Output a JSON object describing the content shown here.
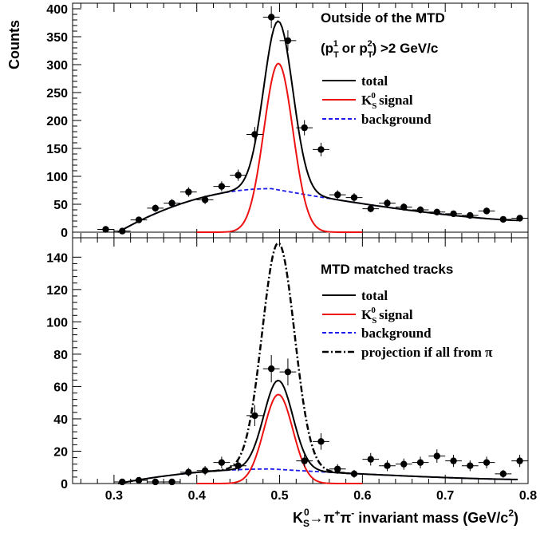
{
  "colors": {
    "total": "#000000",
    "signal": "#ee1111",
    "background": "#1a1aee",
    "projection": "#000000",
    "points": "#000000"
  },
  "chart_data": [
    {
      "type": "scatter",
      "panel": "top",
      "title": "Outside of the MTD",
      "subtitle": "(p_T^1 or p_T^2) >2 GeV/c",
      "xlabel": "K_S^0 → π⁺π⁻ invariant mass (GeV/c²)",
      "ylabel": "Counts",
      "xlim": [
        0.25,
        0.8
      ],
      "ylim": [
        -10,
        410
      ],
      "xticks": [
        0.3,
        0.4,
        0.5,
        0.6,
        0.7,
        0.8
      ],
      "yticks": [
        0,
        50,
        100,
        150,
        200,
        250,
        300,
        350,
        400
      ],
      "legend": {
        "placement": "top-right",
        "entries": [
          "total",
          "K_S^0 signal",
          "background"
        ]
      },
      "points": {
        "x": [
          0.29,
          0.31,
          0.33,
          0.35,
          0.37,
          0.39,
          0.41,
          0.43,
          0.45,
          0.47,
          0.49,
          0.51,
          0.53,
          0.55,
          0.57,
          0.59,
          0.61,
          0.63,
          0.65,
          0.67,
          0.69,
          0.71,
          0.73,
          0.75,
          0.77,
          0.79
        ],
        "y": [
          5,
          2,
          22,
          43,
          52,
          72,
          58,
          82,
          102,
          175,
          385,
          343,
          187,
          148,
          67,
          62,
          42,
          52,
          45,
          40,
          36,
          33,
          30,
          38,
          23,
          25
        ]
      },
      "series": [
        {
          "name": "total",
          "style": "solid"
        },
        {
          "name": "K_S^0 signal",
          "style": "solid"
        },
        {
          "name": "background",
          "style": "dashed"
        }
      ],
      "model": {
        "signal": {
          "mean": 0.4985,
          "sigma": 0.0175,
          "amplitude": 302,
          "range": [
            0.4,
            0.6
          ]
        },
        "background": {
          "x0": 0.305,
          "xpeak": 0.49,
          "peak": 78,
          "x1": 0.79,
          "y1": 21,
          "range": [
            0.305,
            0.8
          ]
        }
      }
    },
    {
      "type": "scatter",
      "panel": "bottom",
      "title": "MTD matched tracks",
      "xlabel": "K_S^0 → π⁺π⁻ invariant mass (GeV/c²)",
      "xlim": [
        0.25,
        0.8
      ],
      "ylim": [
        0,
        152
      ],
      "xticks": [
        0.3,
        0.4,
        0.5,
        0.6,
        0.7,
        0.8
      ],
      "yticks": [
        0,
        20,
        40,
        60,
        80,
        100,
        120,
        140
      ],
      "legend": {
        "placement": "top-right",
        "entries": [
          "total",
          "K_S^0 signal",
          "background",
          "projection if all from π"
        ]
      },
      "points": {
        "x": [
          0.31,
          0.33,
          0.35,
          0.37,
          0.39,
          0.41,
          0.43,
          0.45,
          0.47,
          0.49,
          0.51,
          0.53,
          0.55,
          0.57,
          0.59,
          0.61,
          0.63,
          0.65,
          0.67,
          0.69,
          0.71,
          0.73,
          0.75,
          0.77,
          0.79
        ],
        "y": [
          1,
          2,
          1,
          1,
          7,
          8,
          13,
          11,
          42,
          71,
          69,
          14,
          26,
          9,
          6,
          15,
          11,
          12,
          13,
          17,
          14,
          11,
          13,
          6,
          14
        ]
      },
      "series": [
        {
          "name": "total",
          "style": "solid"
        },
        {
          "name": "K_S^0 signal",
          "style": "solid"
        },
        {
          "name": "background",
          "style": "dashed"
        },
        {
          "name": "projection if all from π",
          "style": "dash-dot"
        }
      ],
      "model": {
        "signal": {
          "mean": 0.4985,
          "sigma": 0.0175,
          "amplitude": 55,
          "range": [
            0.4,
            0.6
          ]
        },
        "background": {
          "x0": 0.305,
          "xpeak": 0.49,
          "peak": 9,
          "x1": 0.79,
          "y1": 2.5,
          "range": [
            0.305,
            0.8
          ]
        },
        "projection": {
          "mean": 0.4985,
          "sigma": 0.0195,
          "amplitude": 140,
          "range": [
            0.42,
            0.58
          ]
        }
      }
    }
  ],
  "labels": {
    "ylabel": "Counts",
    "top_title": "Outside of the MTD",
    "top_subtitle_open": "(p",
    "top_subtitle_or": " or p",
    "top_subtitle_close": ") >2 GeV/c",
    "bottom_title": "MTD matched tracks",
    "legend_total": "total",
    "legend_signal_K": "K",
    "legend_signal_rest": " signal",
    "legend_background": "background",
    "legend_projection": "projection if all from π",
    "sub_T": "T",
    "sup_1": "1",
    "sup_2": "2",
    "sub_S": "S",
    "sup_0": "0",
    "xlabel_K": "K",
    "xlabel_arrow": "→π",
    "xlabel_plus": "+",
    "xlabel_pi": "π",
    "xlabel_minus": "-",
    "xlabel_rest": " invariant mass (GeV/c",
    "xlabel_sq": "2",
    "xlabel_close": ")"
  }
}
